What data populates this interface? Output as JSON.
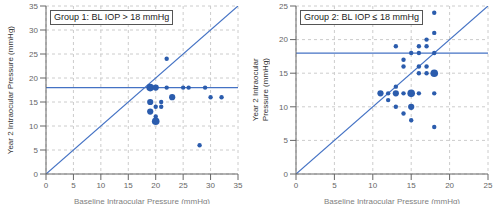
{
  "chart_data": [
    {
      "type": "scatter",
      "title": "Group 1: BL IOP > 18 mmHg",
      "xlabel": "Baseline Intraocular Pressure (mmHg)",
      "ylabel": "Year 2 Intraocular Pressure (mmHg)",
      "xlim": [
        0,
        35
      ],
      "ylim": [
        0,
        35
      ],
      "xticks": [
        0,
        5,
        10,
        15,
        20,
        25,
        30,
        35
      ],
      "yticks": [
        0,
        5,
        10,
        15,
        20,
        25,
        30,
        35
      ],
      "grid": true,
      "hline": {
        "value": 18,
        "color": "#4472c4"
      },
      "series": [
        {
          "type": "scatter",
          "color": "#2b5cad",
          "x": [
            19,
            20,
            19,
            20,
            19,
            20,
            20,
            21,
            21,
            22,
            22,
            23,
            25,
            26,
            28,
            29,
            30,
            32
          ],
          "values": [
            18,
            18,
            15,
            14,
            13,
            12,
            11,
            15,
            14,
            18,
            24,
            16,
            18,
            18,
            6,
            18,
            16,
            16
          ],
          "sizes": [
            3,
            2,
            2,
            1,
            2,
            1,
            3,
            1,
            1,
            1,
            1,
            2,
            1,
            1,
            1,
            1,
            1,
            1
          ]
        },
        {
          "type": "line",
          "color": "#4472c4",
          "x": [
            0,
            35
          ],
          "values": [
            0,
            35
          ]
        }
      ]
    },
    {
      "type": "scatter",
      "title": "Group 2: BL IOP ≤ 18 mmHg",
      "xlabel": "Baseline Intraocular Pressure (mmHg)",
      "ylabel": "Year 2 Intraocular\nPressure (mmHg)",
      "xlim": [
        0,
        25
      ],
      "ylim": [
        0,
        25
      ],
      "xticks": [
        0,
        5,
        10,
        15,
        20,
        25
      ],
      "yticks": [
        0,
        5,
        10,
        15,
        20,
        25
      ],
      "grid": true,
      "hline": {
        "value": 18,
        "color": "#4472c4"
      },
      "series": [
        {
          "type": "scatter",
          "color": "#2b5cad",
          "x": [
            11,
            12,
            12,
            13,
            13,
            13,
            13,
            14,
            14,
            14,
            14,
            15,
            15,
            15,
            15,
            16,
            16,
            16,
            16,
            16,
            17,
            17,
            17,
            17,
            18,
            18,
            18,
            18,
            18,
            18
          ],
          "values": [
            12,
            12,
            11,
            13,
            12,
            10,
            19,
            17,
            16,
            12,
            9,
            18,
            12,
            10,
            8,
            19,
            18,
            16,
            15,
            12,
            20,
            19,
            16,
            15,
            24,
            21,
            18,
            15,
            12,
            7
          ],
          "sizes": [
            2,
            1,
            1,
            1,
            2,
            1,
            1,
            1,
            1,
            1,
            1,
            1,
            3,
            2,
            1,
            1,
            1,
            1,
            1,
            1,
            1,
            1,
            1,
            1,
            1,
            1,
            1,
            3,
            1,
            1
          ]
        },
        {
          "type": "line",
          "color": "#4472c4",
          "x": [
            0,
            25
          ],
          "values": [
            0,
            25
          ]
        }
      ]
    }
  ]
}
